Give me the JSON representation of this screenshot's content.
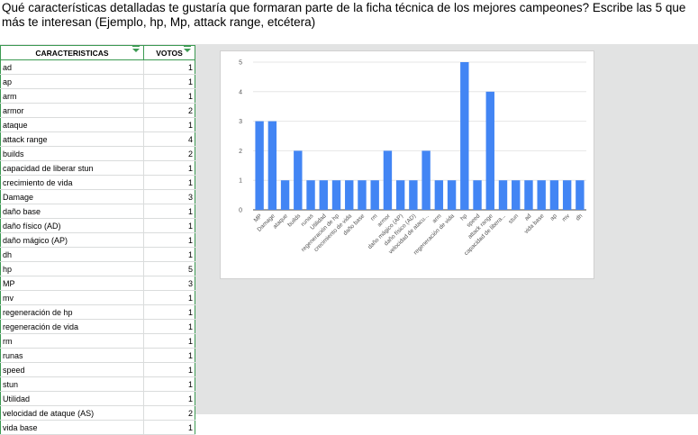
{
  "question": "Qué características detalladas te gustaría que formaran parte de la ficha técnica de los mejores campeones? Escribe las 5 que más te interesan (Ejemplo, hp, Mp, attack range, etcétera)",
  "table": {
    "headers": [
      "CARACTERISTICAS",
      "VOTOS"
    ],
    "rows": [
      [
        "ad",
        "1"
      ],
      [
        "ap",
        "1"
      ],
      [
        "arm",
        "1"
      ],
      [
        "armor",
        "2"
      ],
      [
        "ataque",
        "1"
      ],
      [
        "attack range",
        "4"
      ],
      [
        "builds",
        "2"
      ],
      [
        "capacidad de liberar stun",
        "1"
      ],
      [
        "crecimiento de vida",
        "1"
      ],
      [
        "Damage",
        "3"
      ],
      [
        "daño base",
        "1"
      ],
      [
        "daño físico (AD)",
        "1"
      ],
      [
        "daño mágico (AP)",
        "1"
      ],
      [
        "dh",
        "1"
      ],
      [
        "hp",
        "5"
      ],
      [
        "MP",
        "3"
      ],
      [
        "mv",
        "1"
      ],
      [
        "regeneración de hp",
        "1"
      ],
      [
        "regeneración de vida",
        "1"
      ],
      [
        "rm",
        "1"
      ],
      [
        "runas",
        "1"
      ],
      [
        "speed",
        "1"
      ],
      [
        "stun",
        "1"
      ],
      [
        "Utilidad",
        "1"
      ],
      [
        "velocidad de ataque (AS)",
        "2"
      ],
      [
        "vida base",
        "1"
      ]
    ]
  },
  "chart_data": {
    "type": "bar",
    "categories": [
      "MP",
      "Damage",
      "ataque",
      "builds",
      "runas",
      "Utilidad",
      "regeneración de hp",
      "crecimiento de vida",
      "daño base",
      "rm",
      "armor",
      "daño mágico (AP)",
      "daño físico (AD)",
      "velocidad de atacu...",
      "arm",
      "regeneración de vida",
      "hp",
      "speed",
      "attack range",
      "capacidad de libera...",
      "stun",
      "ad",
      "vida base",
      "ap",
      "mv",
      "dh"
    ],
    "values": [
      3,
      3,
      1,
      2,
      1,
      1,
      1,
      1,
      1,
      1,
      2,
      1,
      1,
      2,
      1,
      1,
      5,
      1,
      4,
      1,
      1,
      1,
      1,
      1,
      1,
      1
    ],
    "ylim": [
      0,
      5
    ],
    "yticks": [
      "0",
      "1",
      "2",
      "3",
      "4",
      "5"
    ],
    "title": "",
    "xlabel": "",
    "ylabel": "",
    "grid": true,
    "bar_color": "#4285f4"
  },
  "colors": {
    "header_border": "#3c9a52",
    "grid": "#e2e3e3",
    "bar": "#4285f4"
  }
}
